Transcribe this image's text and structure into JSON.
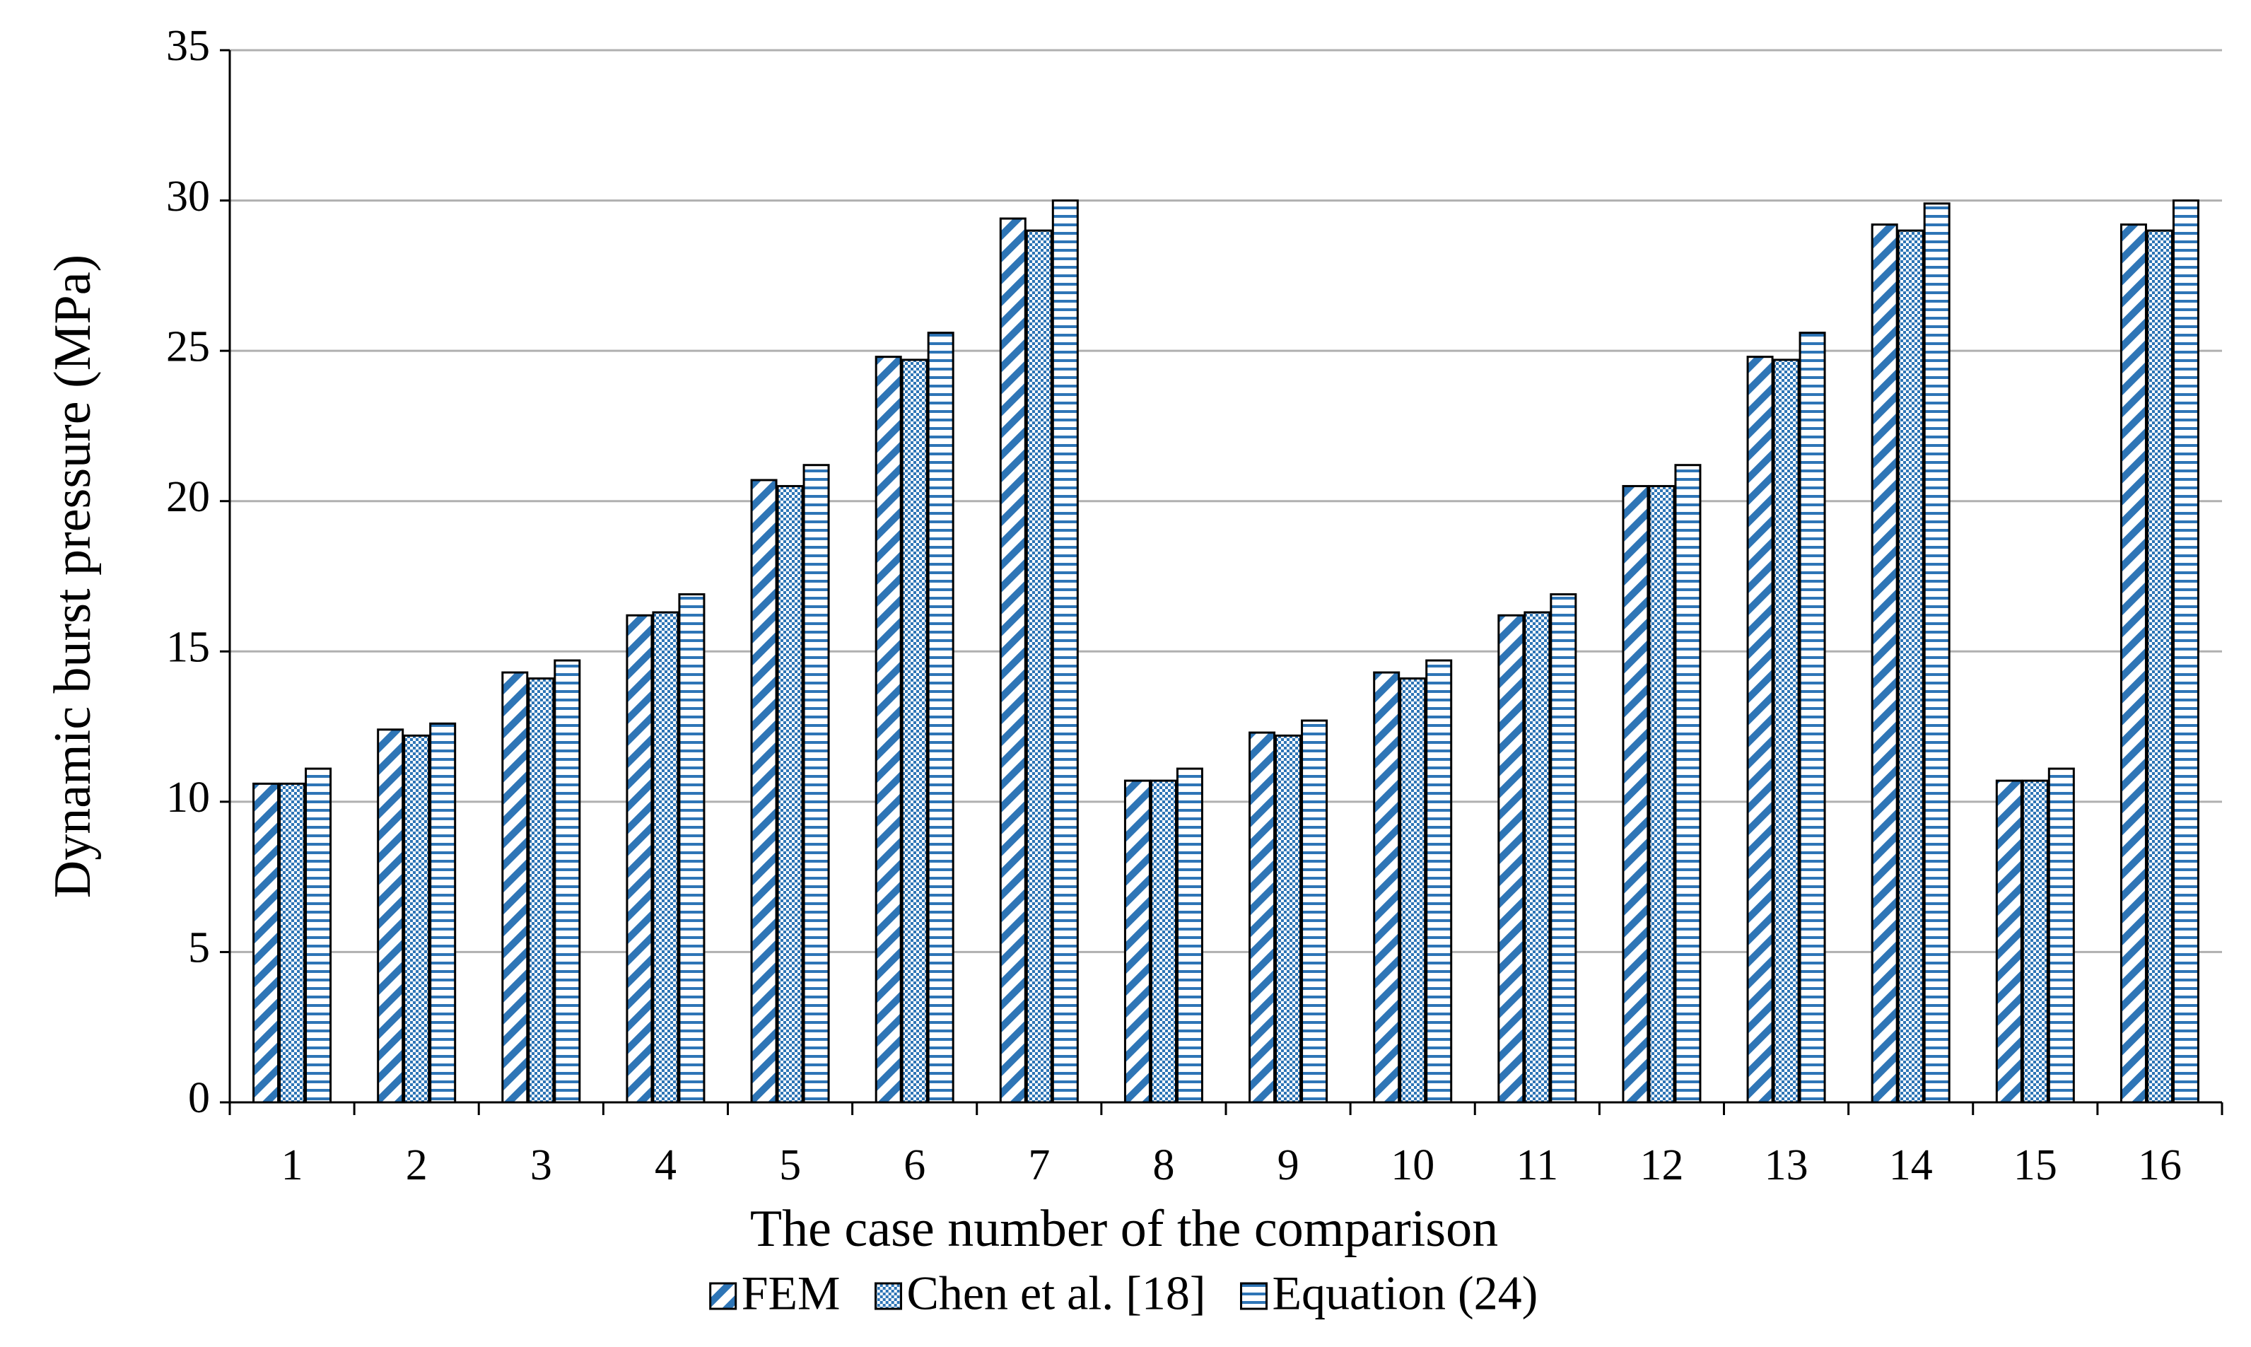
{
  "chart_data": {
    "type": "bar",
    "x_label": "The case number of the comparison",
    "y_label": "Dynamic burst pressure (MPa)",
    "categories": [
      "1",
      "2",
      "3",
      "4",
      "5",
      "6",
      "7",
      "8",
      "9",
      "10",
      "11",
      "12",
      "13",
      "14",
      "15",
      "16"
    ],
    "series": [
      {
        "name": "FEM",
        "color": "#2e75b6",
        "pattern": "diagonal",
        "values": [
          10.6,
          12.4,
          14.3,
          16.2,
          20.7,
          24.8,
          29.4,
          10.7,
          12.3,
          14.3,
          16.2,
          20.5,
          24.8,
          29.2,
          10.7,
          29.2
        ]
      },
      {
        "name": "Chen et al. [18]",
        "color": "#2e75b6",
        "pattern": "checker",
        "values": [
          10.6,
          12.2,
          14.1,
          16.3,
          20.5,
          24.7,
          29.0,
          10.7,
          12.2,
          14.1,
          16.3,
          20.5,
          24.7,
          29.0,
          10.7,
          29.0
        ]
      },
      {
        "name": "Equation (24)",
        "color": "#2e75b6",
        "pattern": "horizontal",
        "values": [
          11.1,
          12.6,
          14.7,
          16.9,
          21.2,
          25.6,
          30.0,
          11.1,
          12.7,
          14.7,
          16.9,
          21.2,
          25.6,
          29.9,
          11.1,
          30.0
        ]
      }
    ],
    "ylim": [
      0,
      35
    ],
    "yticks": [
      0,
      5,
      10,
      15,
      20,
      25,
      30,
      35
    ],
    "grid": true,
    "legend": "bottom"
  }
}
